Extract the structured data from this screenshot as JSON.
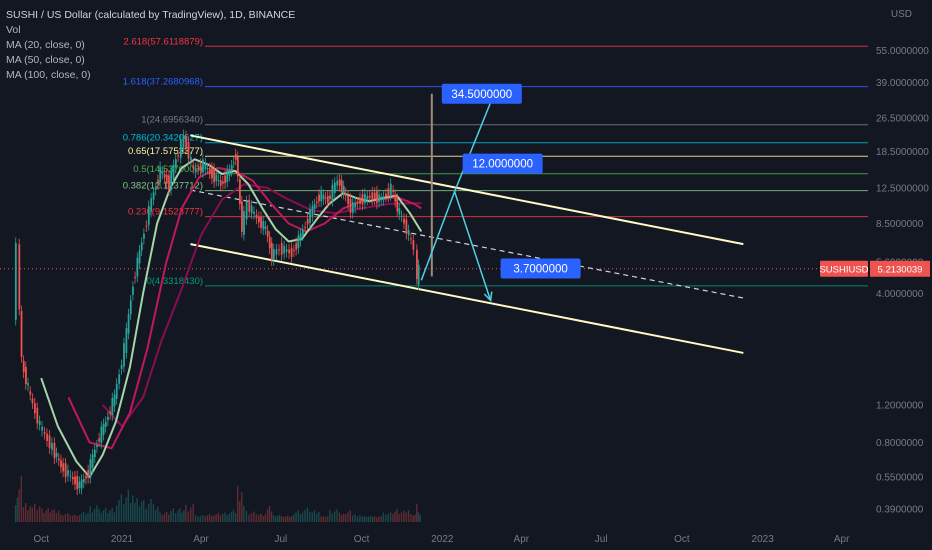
{
  "header": {
    "title": "SUSHI / US Dollar (calculated by TradingView), 1D, BINANCE",
    "indicators": [
      "Vol",
      "MA (20, close, 0)",
      "MA (50, close, 0)",
      "MA (100, close, 0)"
    ]
  },
  "chart_data": {
    "type": "line",
    "symbol": "SUSHIUSD",
    "last_price": 5.2130039,
    "last_price_label": "5.2130039",
    "axis_currency": "USD",
    "y_scale": "log",
    "ylim": [
      0.25,
      95
    ],
    "x_ticks": [
      "Oct",
      "2021",
      "Apr",
      "Jul",
      "Oct",
      "2022",
      "Apr",
      "Jul",
      "Oct",
      "2023",
      "Apr"
    ],
    "y_ticks": [
      {
        "value": 55,
        "label": "55.0000000"
      },
      {
        "value": 39,
        "label": "39.0000000"
      },
      {
        "value": 26.5,
        "label": "26.5000000"
      },
      {
        "value": 18.5,
        "label": "18.5000000"
      },
      {
        "value": 12.5,
        "label": "12.5000000"
      },
      {
        "value": 8.5,
        "label": "8.5000000"
      },
      {
        "value": 5.6,
        "label": "5.6000000"
      },
      {
        "value": 4.0,
        "label": "4.0000000"
      },
      {
        "value": 1.2,
        "label": "1.2000000"
      },
      {
        "value": 0.8,
        "label": "0.8000000"
      },
      {
        "value": 0.55,
        "label": "0.5500000"
      },
      {
        "value": 0.39,
        "label": "0.3900000"
      }
    ],
    "fib_levels": [
      {
        "label": "2.618(57.6118879)",
        "value": 57.6118879,
        "color": "#f23645"
      },
      {
        "label": "1.618(37.2680968)",
        "value": 37.2680968,
        "color": "#2962ff"
      },
      {
        "label": "1(24.6956340)",
        "value": 24.695634,
        "color": "#787b86"
      },
      {
        "label": "0.786(20.3420627)",
        "value": 20.3420627,
        "color": "#00bcd4"
      },
      {
        "label": "0.65(17.5753377)",
        "value": 17.5753377,
        "color": "#fff59d"
      },
      {
        "label": "0.5(14.5370000)",
        "value": 14.537,
        "color": "#4caf50"
      },
      {
        "label": "0.382(12.1237712)",
        "value": 12.1237712,
        "color": "#81c784"
      },
      {
        "label": "0.236(9.1523777)",
        "value": 9.1523777,
        "color": "#f23645"
      },
      {
        "label": "0(4.3318430)",
        "value": 4.331843,
        "color": "#089981"
      }
    ],
    "targets": [
      {
        "label": "34.5000000",
        "value": 34.5
      },
      {
        "label": "12.0000000",
        "value": 12.0
      },
      {
        "label": "3.7000000",
        "value": 3.7
      }
    ],
    "price_path": [
      [
        "2020-09-01",
        3.2
      ],
      [
        "2020-09-05",
        6.5
      ],
      [
        "2020-09-10",
        1.9
      ],
      [
        "2020-09-20",
        1.3
      ],
      [
        "2020-10-01",
        0.95
      ],
      [
        "2020-10-15",
        0.75
      ],
      [
        "2020-10-25",
        0.62
      ],
      [
        "2020-11-05",
        0.55
      ],
      [
        "2020-11-15",
        0.5
      ],
      [
        "2020-11-25",
        0.58
      ],
      [
        "2020-12-05",
        0.8
      ],
      [
        "2020-12-15",
        1.0
      ],
      [
        "2020-12-25",
        1.3
      ],
      [
        "2021-01-05",
        2.2
      ],
      [
        "2021-01-15",
        4.5
      ],
      [
        "2021-01-25",
        7.0
      ],
      [
        "2021-02-05",
        11.0
      ],
      [
        "2021-02-15",
        15.0
      ],
      [
        "2021-02-25",
        13.0
      ],
      [
        "2021-03-05",
        17.0
      ],
      [
        "2021-03-14",
        21.5
      ],
      [
        "2021-03-25",
        15.0
      ],
      [
        "2021-04-05",
        16.0
      ],
      [
        "2021-04-15",
        14.5
      ],
      [
        "2021-04-25",
        13.0
      ],
      [
        "2021-05-05",
        15.0
      ],
      [
        "2021-05-12",
        18.0
      ],
      [
        "2021-05-19",
        8.0
      ],
      [
        "2021-05-25",
        10.5
      ],
      [
        "2021-06-05",
        9.0
      ],
      [
        "2021-06-15",
        8.0
      ],
      [
        "2021-06-22",
        6.0
      ],
      [
        "2021-07-01",
        6.5
      ],
      [
        "2021-07-15",
        6.2
      ],
      [
        "2021-07-25",
        7.5
      ],
      [
        "2021-08-05",
        9.5
      ],
      [
        "2021-08-15",
        11.5
      ],
      [
        "2021-08-25",
        11.0
      ],
      [
        "2021-09-05",
        13.5
      ],
      [
        "2021-09-12",
        12.0
      ],
      [
        "2021-09-20",
        10.0
      ],
      [
        "2021-10-01",
        11.0
      ],
      [
        "2021-10-15",
        11.5
      ],
      [
        "2021-10-25",
        11.0
      ],
      [
        "2021-11-05",
        12.5
      ],
      [
        "2021-11-12",
        10.0
      ],
      [
        "2021-11-20",
        8.5
      ],
      [
        "2021-11-28",
        7.0
      ],
      [
        "2021-12-02",
        6.5
      ],
      [
        "2021-12-04",
        4.6
      ],
      [
        "2021-12-08",
        5.21
      ]
    ],
    "ma_20": [
      [
        "2020-10-01",
        1.6
      ],
      [
        "2020-10-20",
        0.95
      ],
      [
        "2020-11-10",
        0.65
      ],
      [
        "2020-11-25",
        0.55
      ],
      [
        "2020-12-10",
        0.7
      ],
      [
        "2020-12-25",
        1.0
      ],
      [
        "2021-01-10",
        1.8
      ],
      [
        "2021-01-25",
        4.0
      ],
      [
        "2021-02-10",
        8.5
      ],
      [
        "2021-02-25",
        12.5
      ],
      [
        "2021-03-10",
        15.5
      ],
      [
        "2021-03-25",
        17.0
      ],
      [
        "2021-04-10",
        16.0
      ],
      [
        "2021-04-25",
        14.5
      ],
      [
        "2021-05-10",
        15.0
      ],
      [
        "2021-05-25",
        13.0
      ],
      [
        "2021-06-10",
        10.0
      ],
      [
        "2021-06-25",
        8.0
      ],
      [
        "2021-07-10",
        7.0
      ],
      [
        "2021-07-25",
        7.2
      ],
      [
        "2021-08-10",
        8.8
      ],
      [
        "2021-08-25",
        10.5
      ],
      [
        "2021-09-10",
        11.8
      ],
      [
        "2021-09-25",
        11.2
      ],
      [
        "2021-10-10",
        10.8
      ],
      [
        "2021-10-25",
        11.2
      ],
      [
        "2021-11-10",
        11.5
      ],
      [
        "2021-11-25",
        9.5
      ],
      [
        "2021-12-08",
        7.8
      ]
    ],
    "ma_50": [
      [
        "2020-11-01",
        1.3
      ],
      [
        "2020-11-25",
        0.8
      ],
      [
        "2020-12-20",
        0.75
      ],
      [
        "2021-01-10",
        1.1
      ],
      [
        "2021-01-30",
        2.2
      ],
      [
        "2021-02-20",
        5.5
      ],
      [
        "2021-03-10",
        10.0
      ],
      [
        "2021-03-30",
        14.0
      ],
      [
        "2021-04-20",
        15.5
      ],
      [
        "2021-05-10",
        15.0
      ],
      [
        "2021-05-30",
        13.5
      ],
      [
        "2021-06-20",
        10.5
      ],
      [
        "2021-07-10",
        8.5
      ],
      [
        "2021-07-30",
        7.8
      ],
      [
        "2021-08-20",
        8.5
      ],
      [
        "2021-09-10",
        10.0
      ],
      [
        "2021-09-30",
        10.8
      ],
      [
        "2021-10-20",
        11.0
      ],
      [
        "2021-11-10",
        11.3
      ],
      [
        "2021-11-30",
        10.5
      ],
      [
        "2021-12-08",
        10.0
      ]
    ],
    "ma_100": [
      [
        "2020-12-10",
        1.2
      ],
      [
        "2021-01-01",
        0.95
      ],
      [
        "2021-01-25",
        1.3
      ],
      [
        "2021-02-15",
        2.4
      ],
      [
        "2021-03-10",
        4.2
      ],
      [
        "2021-04-01",
        7.5
      ],
      [
        "2021-04-25",
        11.0
      ],
      [
        "2021-05-20",
        13.0
      ],
      [
        "2021-06-15",
        12.5
      ],
      [
        "2021-07-10",
        11.0
      ],
      [
        "2021-08-05",
        9.8
      ],
      [
        "2021-09-01",
        9.5
      ],
      [
        "2021-10-01",
        10.0
      ],
      [
        "2021-11-01",
        10.5
      ],
      [
        "2021-12-08",
        10.6
      ]
    ],
    "channel": {
      "upper": [
        [
          "2021-03-20",
          22.0
        ],
        [
          "2022-12-10",
          6.8
        ]
      ],
      "lower": [
        [
          "2021-03-20",
          6.8
        ],
        [
          "2022-12-10",
          2.1
        ]
      ],
      "mid": [
        [
          "2021-03-20",
          12.2
        ],
        [
          "2022-12-10",
          3.8
        ]
      ]
    },
    "projection": {
      "spike": [
        [
          "2021-12-20",
          34.5
        ],
        [
          "2021-12-20",
          4.8
        ]
      ],
      "up_path": [
        [
          "2021-12-08",
          4.6
        ],
        [
          "2022-01-15",
          12.0
        ],
        [
          "2022-03-01",
          34.5
        ]
      ],
      "down_path": [
        [
          "2022-01-15",
          12.0
        ],
        [
          "2022-02-25",
          3.7
        ]
      ]
    }
  }
}
